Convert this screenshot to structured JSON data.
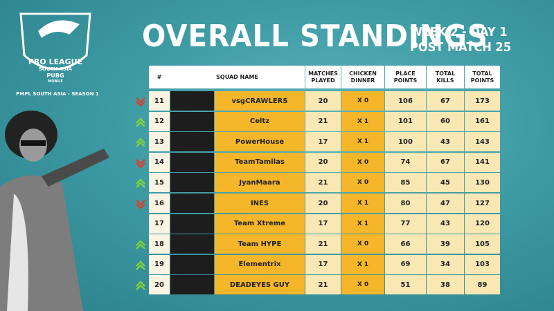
{
  "header": {
    "logo": {
      "line1": "PRO LEAGUE",
      "line2": "SOUTH ASIA",
      "line3": "PUBG",
      "line4": "MOBILE",
      "caption": "PMPL SOUTH ASIA - SEASON 1"
    },
    "title": "OVERALL STANDINGS",
    "subtitle1": "WEEK 2 - DAY 1",
    "subtitle2": "POST MATCH 25"
  },
  "table": {
    "columns": [
      "#",
      "SQUAD NAME",
      "MATCHES PLAYED",
      "CHICKEN DINNER",
      "PLACE POINTS",
      "TOTAL KILLS",
      "TOTAL POINTS"
    ],
    "rows": [
      {
        "rank": "11",
        "squad": "vsgCRAWLERS",
        "matches": "20",
        "chicken": "X 0",
        "place": "106",
        "kills": "67",
        "total": "173",
        "trend": "down"
      },
      {
        "rank": "12",
        "squad": "Celtz",
        "matches": "21",
        "chicken": "X 1",
        "place": "101",
        "kills": "60",
        "total": "161",
        "trend": "up"
      },
      {
        "rank": "13",
        "squad": "PowerHouse",
        "matches": "17",
        "chicken": "X 1",
        "place": "100",
        "kills": "43",
        "total": "143",
        "trend": "up"
      },
      {
        "rank": "14",
        "squad": "TeamTamilas",
        "matches": "20",
        "chicken": "X 0",
        "place": "74",
        "kills": "67",
        "total": "141",
        "trend": "down"
      },
      {
        "rank": "15",
        "squad": "JyanMaara",
        "matches": "21",
        "chicken": "X 0",
        "place": "85",
        "kills": "45",
        "total": "130",
        "trend": "up"
      },
      {
        "rank": "16",
        "squad": "INES",
        "matches": "20",
        "chicken": "X 1",
        "place": "80",
        "kills": "47",
        "total": "127",
        "trend": "down"
      },
      {
        "rank": "17",
        "squad": "Team Xtreme",
        "matches": "17",
        "chicken": "X 1",
        "place": "77",
        "kills": "43",
        "total": "120",
        "trend": null
      },
      {
        "rank": "18",
        "squad": "Team HYPE",
        "matches": "21",
        "chicken": "X 0",
        "place": "66",
        "kills": "39",
        "total": "105",
        "trend": "up"
      },
      {
        "rank": "19",
        "squad": "Elementrix",
        "matches": "17",
        "chicken": "X 1",
        "place": "69",
        "kills": "34",
        "total": "103",
        "trend": "up"
      },
      {
        "rank": "20",
        "squad": "DEADEYES GUY",
        "matches": "21",
        "chicken": "X 0",
        "place": "51",
        "kills": "38",
        "total": "89",
        "trend": "up"
      }
    ]
  }
}
